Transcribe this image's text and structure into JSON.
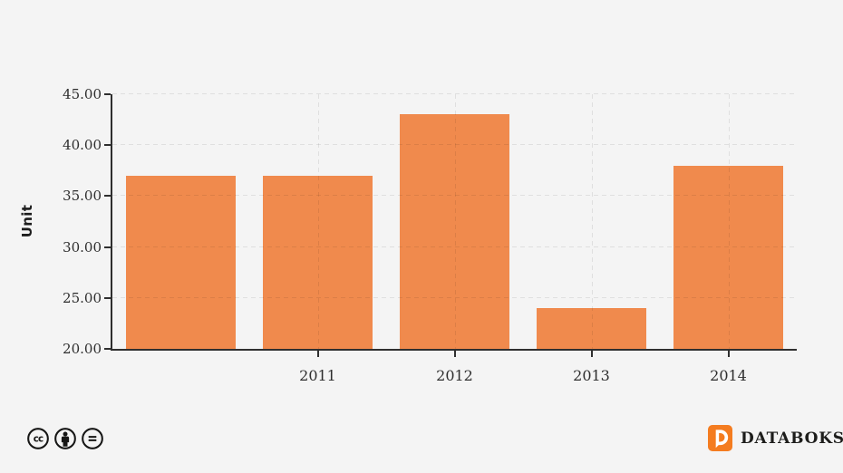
{
  "background": "#f4f4f4",
  "chart_data": {
    "type": "bar",
    "categories": [
      "",
      "2011",
      "2012",
      "2013",
      "2014"
    ],
    "values": [
      37,
      37,
      43,
      24,
      38
    ],
    "title": "",
    "xlabel": "",
    "ylabel": "Unit",
    "ylim": [
      20,
      45
    ],
    "ytick_interval": 5,
    "ytick_labels": [
      "20.00",
      "25.00",
      "30.00",
      "35.00",
      "40.00",
      "45.00"
    ],
    "bar_color": "#F08A4D",
    "axis_color": "#2f2f2f",
    "grid": "dashed",
    "legend": "none"
  },
  "footer": {
    "license_icons": [
      "cc-icon",
      "cc-by-icon",
      "cc-nd-icon"
    ],
    "brand": "DATABOKS",
    "brand_color": "#F47C20"
  }
}
